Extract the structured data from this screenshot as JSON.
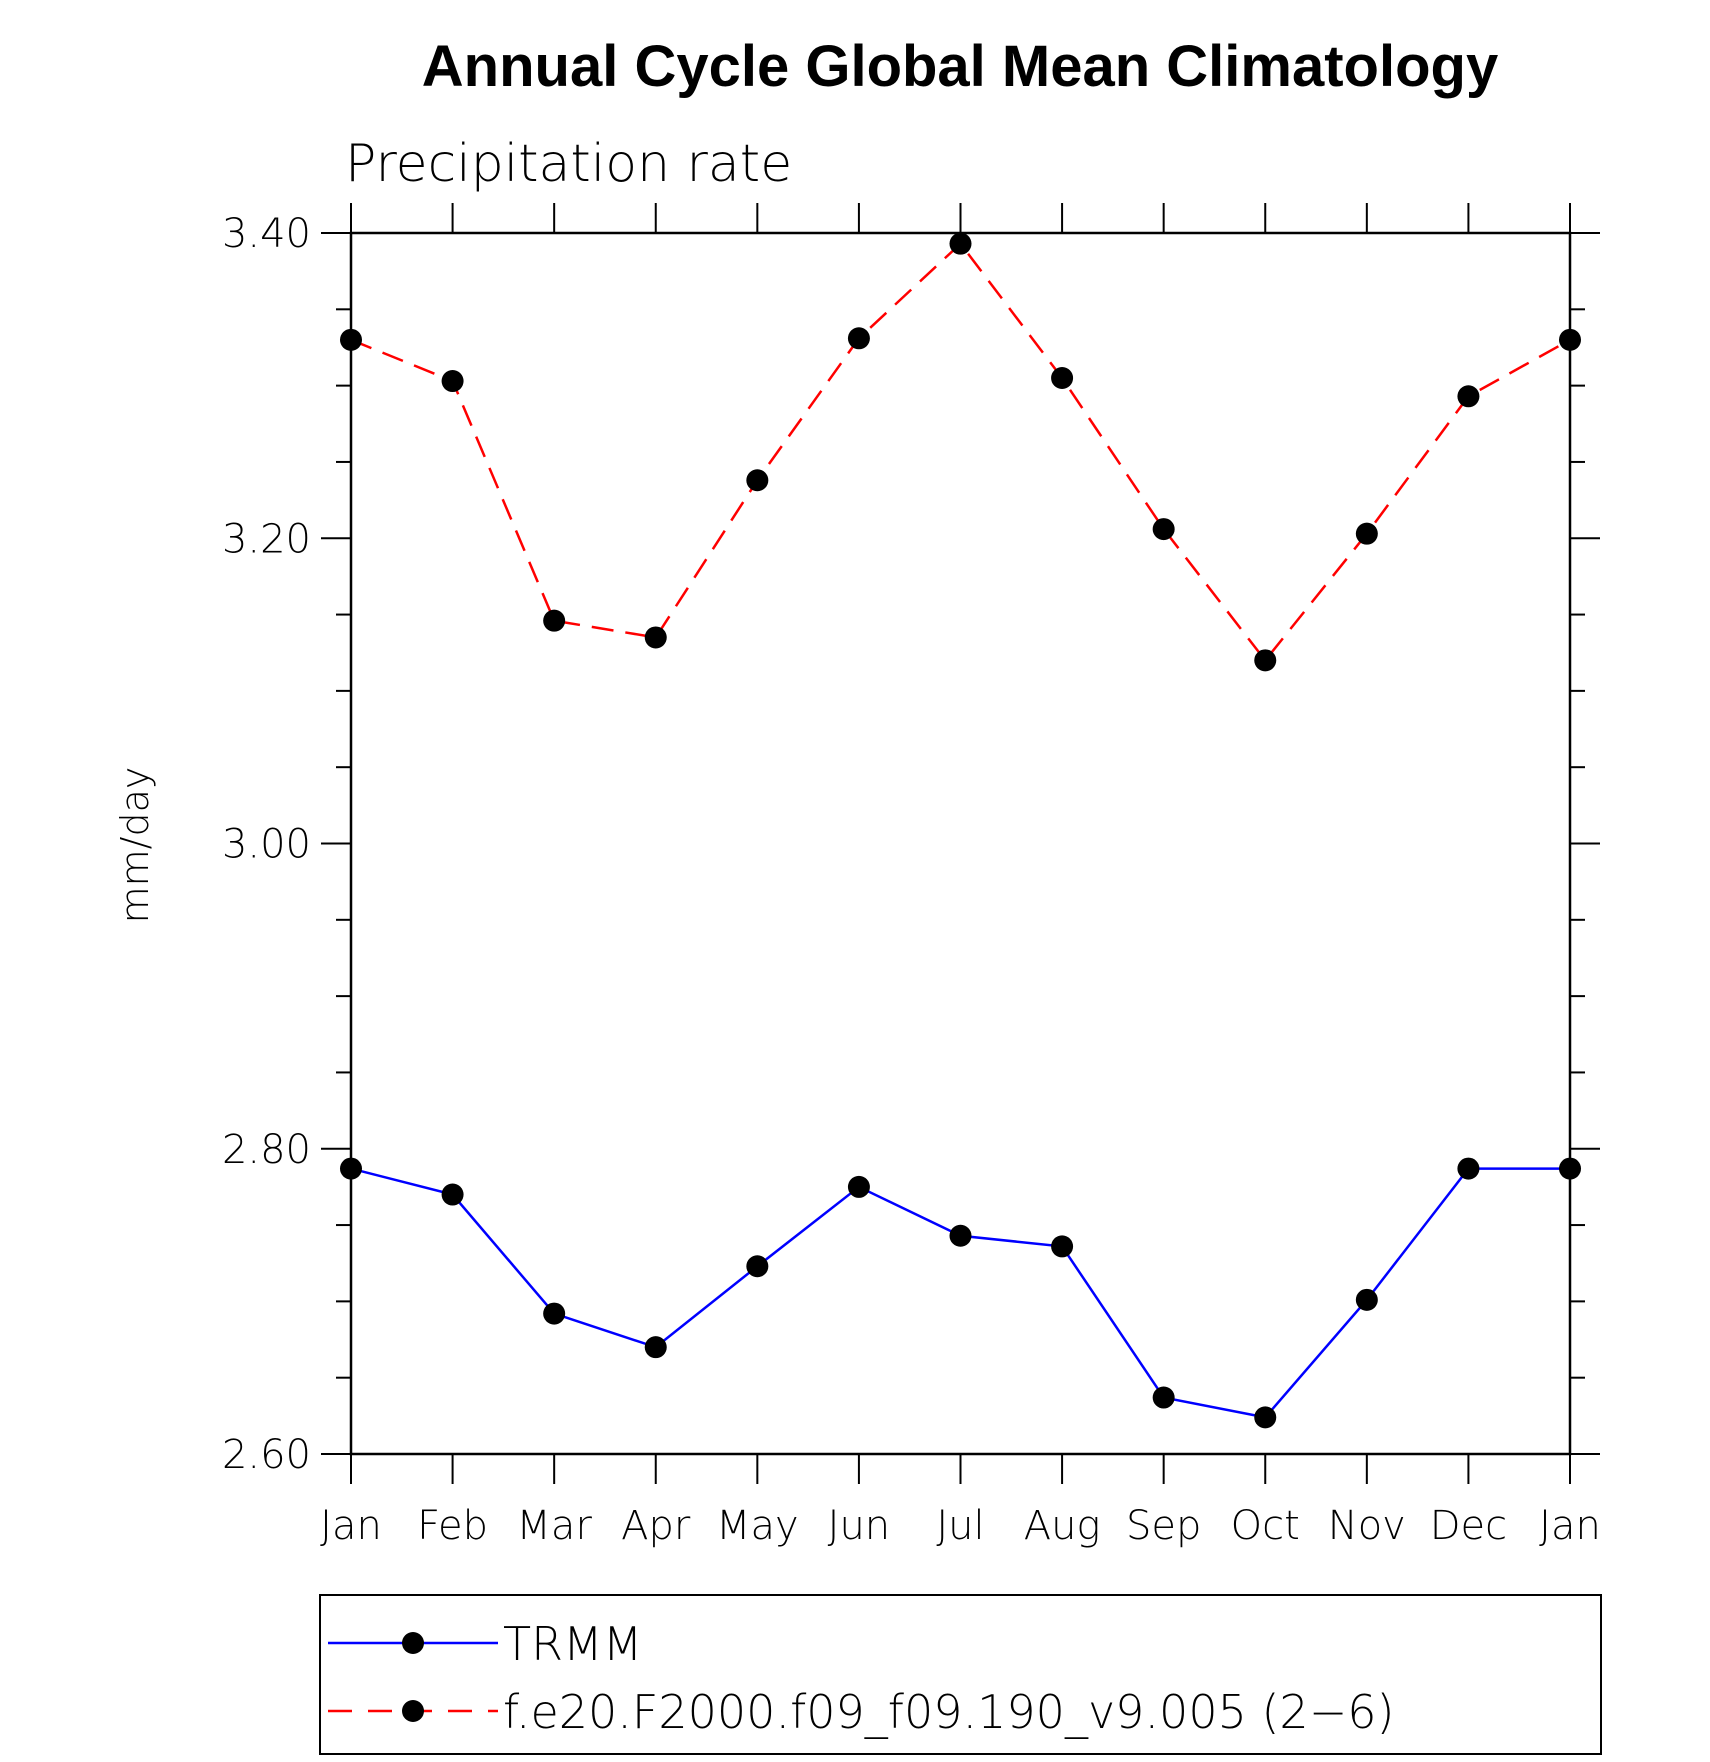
{
  "chart_data": {
    "type": "line",
    "title": "Annual Cycle Global Mean Climatology",
    "subtitle": "Precipitation rate",
    "xlabel": "",
    "ylabel": "mm/day",
    "categories": [
      "Jan",
      "Feb",
      "Mar",
      "Apr",
      "May",
      "Jun",
      "Jul",
      "Aug",
      "Sep",
      "Oct",
      "Nov",
      "Dec",
      "Jan"
    ],
    "ylim": [
      2.6,
      3.4
    ],
    "yticks": [
      "2.60",
      "2.80",
      "3.00",
      "3.20",
      "3.40"
    ],
    "yticks_values": [
      2.6,
      2.8,
      3.0,
      3.2,
      3.4
    ],
    "y_minor_step": 0.05,
    "grid": false,
    "legend_position": "bottom",
    "series": [
      {
        "name": "TRMM",
        "color": "#0000ff",
        "line_style": "solid",
        "marker": "filled-circle",
        "values": [
          2.787,
          2.77,
          2.692,
          2.67,
          2.723,
          2.775,
          2.743,
          2.736,
          2.637,
          2.624,
          2.701,
          2.787,
          2.787
        ]
      },
      {
        "name": "f.e20.F2000.f09_f09.190_v9.005 (2−6)",
        "color": "#ff0000",
        "line_style": "dashed",
        "marker": "filled-circle",
        "values": [
          3.33,
          3.303,
          3.146,
          3.135,
          3.238,
          3.331,
          3.393,
          3.305,
          3.206,
          3.12,
          3.203,
          3.293,
          3.33
        ]
      }
    ]
  }
}
